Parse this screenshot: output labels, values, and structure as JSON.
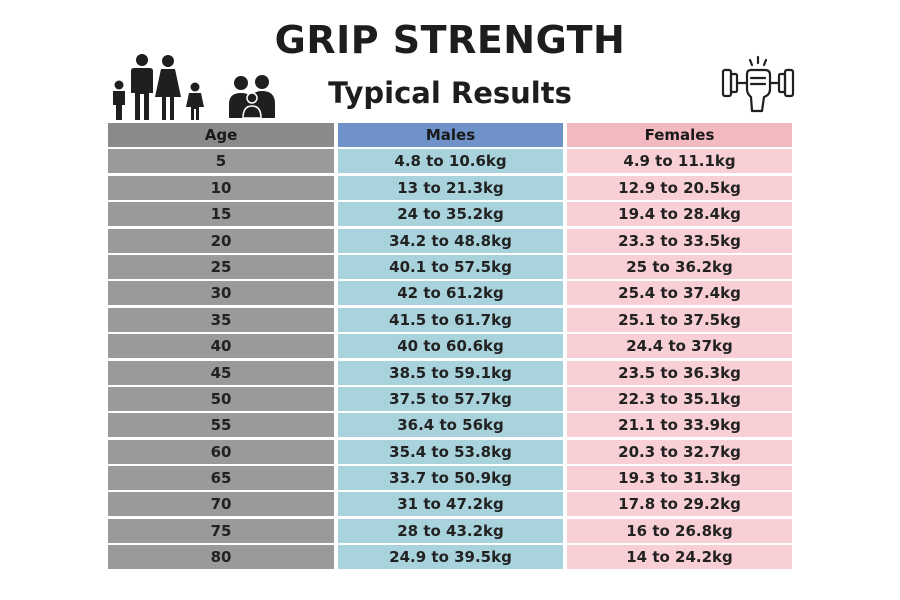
{
  "title": "GRIP STRENGTH",
  "subtitle": "Typical Results",
  "icons": {
    "left_1": "family-icon",
    "left_2": "parent-child-icon",
    "right": "dumbbell-grip-icon"
  },
  "colors": {
    "age_header": "#8a8a8a",
    "age_cell": "#9a9a9a",
    "males_header": "#6f93c9",
    "males_cell": "#a9d3dc",
    "females_header": "#f2b9c0",
    "females_cell": "#f7cfd4"
  },
  "chart_data": {
    "type": "table",
    "columns": [
      "Age",
      "Males",
      "Females"
    ],
    "rows": [
      [
        "5",
        "4.8 to 10.6kg",
        "4.9 to 11.1kg"
      ],
      [
        "10",
        "13 to 21.3kg",
        "12.9 to 20.5kg"
      ],
      [
        "15",
        "24 to 35.2kg",
        "19.4 to 28.4kg"
      ],
      [
        "20",
        "34.2 to 48.8kg",
        "23.3 to 33.5kg"
      ],
      [
        "25",
        "40.1 to 57.5kg",
        "25 to 36.2kg"
      ],
      [
        "30",
        "42 to 61.2kg",
        "25.4 to 37.4kg"
      ],
      [
        "35",
        "41.5 to 61.7kg",
        "25.1 to 37.5kg"
      ],
      [
        "40",
        "40 to 60.6kg",
        "24.4 to 37kg"
      ],
      [
        "45",
        "38.5 to 59.1kg",
        "23.5 to 36.3kg"
      ],
      [
        "50",
        "37.5 to 57.7kg",
        "22.3 to 35.1kg"
      ],
      [
        "55",
        "36.4 to 56kg",
        "21.1 to 33.9kg"
      ],
      [
        "60",
        "35.4 to 53.8kg",
        "20.3 to 32.7kg"
      ],
      [
        "65",
        "33.7 to 50.9kg",
        "19.3 to 31.3kg"
      ],
      [
        "70",
        "31 to 47.2kg",
        "17.8 to 29.2kg"
      ],
      [
        "75",
        "28 to 43.2kg",
        "16 to 26.8kg"
      ],
      [
        "80",
        "24.9 to 39.5kg",
        "14 to 24.2kg"
      ]
    ]
  }
}
